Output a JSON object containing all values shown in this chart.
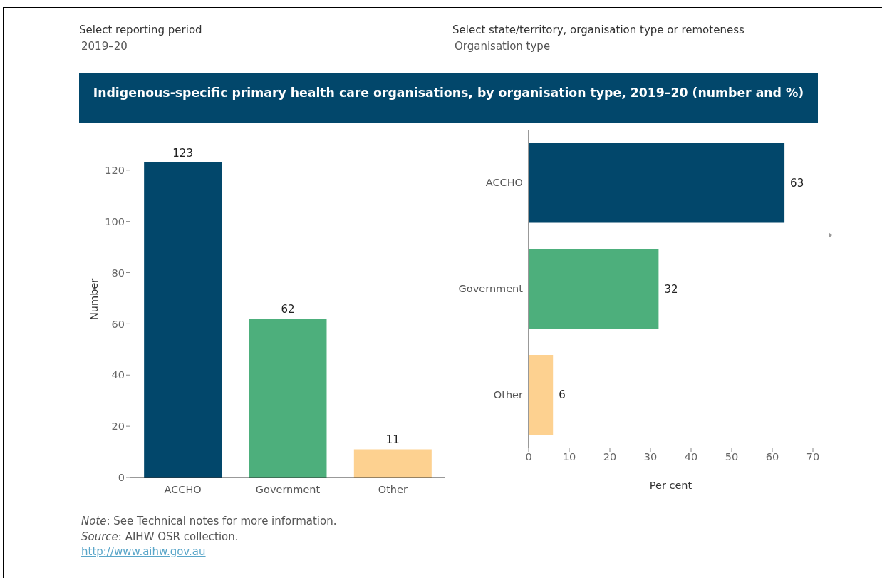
{
  "chart_data": [
    {
      "type": "bar",
      "title": "Indigenous-specific primary health care organisations, by organisation type, 2019–20 (number and %)",
      "annotations": [
        "Select reporting period",
        "2019–20",
        "Select state/territory, organisation type or remoteness",
        "Organisation type",
        "Note: See Technical notes for more information.",
        "Source: AIHW OSR collection.",
        "http://www.aihw.gov.au"
      ],
      "categories": [
        "ACCHO",
        "Government",
        "Other"
      ],
      "values": [
        123,
        62,
        11
      ],
      "colors": [
        "#02476b",
        "#4daf7c",
        "#fdd190"
      ],
      "ylabel": "Number",
      "ylim": [
        0,
        123
      ],
      "yticks": [
        0,
        20,
        40,
        60,
        80,
        100,
        120
      ],
      "data_labels": true
    },
    {
      "type": "bar",
      "orientation": "horizontal",
      "categories": [
        "ACCHO",
        "Government",
        "Other"
      ],
      "values": [
        63,
        32,
        6
      ],
      "colors": [
        "#02476b",
        "#4daf7c",
        "#fdd190"
      ],
      "xlabel": "Per cent",
      "xlim": [
        0,
        70
      ],
      "xticks": [
        0,
        10,
        20,
        30,
        40,
        50,
        60,
        70
      ],
      "data_labels": true
    }
  ]
}
